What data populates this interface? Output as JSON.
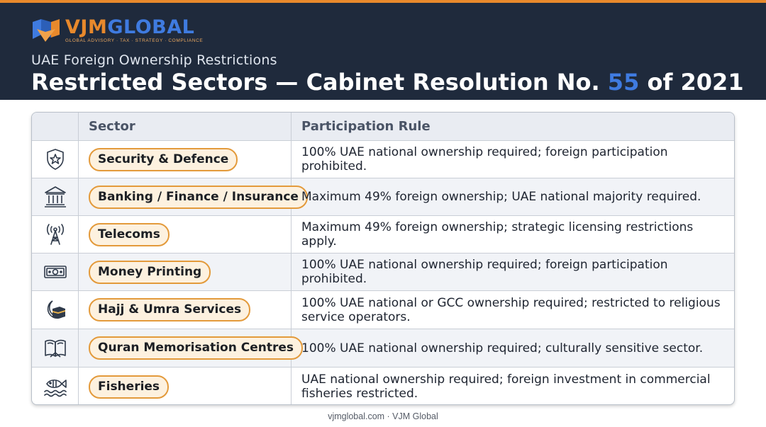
{
  "brand": {
    "name_part1": "VJM",
    "name_part2": "GLOBAL",
    "tagline": "GLOBAL ADVISORY · TAX · STRATEGY · COMPLIANCE"
  },
  "header": {
    "subtitle": "UAE Foreign Ownership Restrictions",
    "title_prefix": "Restricted Sectors — Cabinet Resolution No. ",
    "title_number": "55",
    "title_suffix": " of 2021"
  },
  "table": {
    "columns": [
      "",
      "Sector",
      "Participation Rule"
    ],
    "rows": [
      {
        "icon": "shield-star-icon",
        "sector": "Security & Defence",
        "rule": "100% UAE national ownership required; foreign participation prohibited."
      },
      {
        "icon": "bank-building-icon",
        "sector": "Banking / Finance / Insurance",
        "rule": "Maximum 49% foreign ownership; UAE national majority required."
      },
      {
        "icon": "radio-tower-icon",
        "sector": "Telecoms",
        "rule": "Maximum 49% foreign ownership; strategic licensing restrictions apply."
      },
      {
        "icon": "banknote-icon",
        "sector": "Money Printing",
        "rule": "100% UAE national ownership required; foreign participation prohibited."
      },
      {
        "icon": "kaaba-crescent-icon",
        "sector": "Hajj & Umra Services",
        "rule": "100% UAE national or GCC ownership required; restricted to religious service operators."
      },
      {
        "icon": "open-book-icon",
        "sector": "Quran Memorisation Centres",
        "rule": "100% UAE national ownership required; culturally sensitive sector."
      },
      {
        "icon": "fish-waves-icon",
        "sector": "Fisheries",
        "rule": "UAE national ownership required; foreign investment in commercial fisheries restricted."
      }
    ]
  },
  "footer": {
    "text": "vjmglobal.com · VJM Global"
  },
  "colors": {
    "header_bg": "#1f2a3c",
    "accent_orange": "#e8892c",
    "accent_blue": "#3f7be0",
    "pill_bg": "#fdf1df",
    "pill_border": "#e39a3b"
  }
}
